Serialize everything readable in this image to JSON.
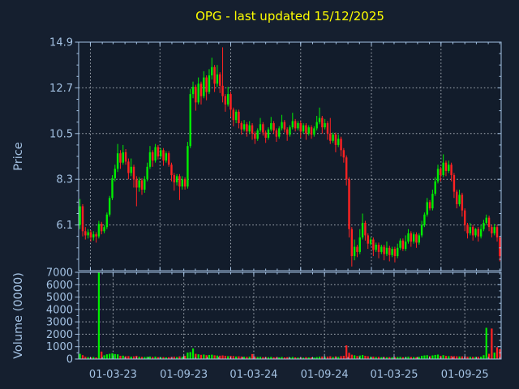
{
  "title": {
    "text": "OPG - last updated 15/12/2025"
  },
  "colors": {
    "figure_background": "#151f2f",
    "plot_background": "#121c2b",
    "axis": "#a4c2e3",
    "tick_label": "#a4c2e3",
    "grid": "#c6cdd5",
    "up": "#00ee00",
    "down": "#ff2222",
    "title": "#ffff00"
  },
  "price_axis": {
    "label": "Price",
    "tick_labels": [
      "14.9",
      "12.7",
      "10.5",
      "8.3",
      "6.1"
    ],
    "tick_values": [
      14.9,
      12.7,
      10.5,
      8.3,
      6.1
    ],
    "ylim": [
      3.9,
      14.9
    ],
    "gridline_values": [
      12.7,
      10.5,
      8.3,
      6.1
    ],
    "major_weeks": [
      3.857,
      29.714,
      56.0,
      82.0,
      108.286,
      134.143
    ]
  },
  "volume_axis": {
    "label": "Volume (0000)",
    "tick_labels": [
      "7000",
      "6000",
      "5000",
      "4000",
      "3000",
      "2000",
      "1000",
      "0"
    ],
    "tick_values": [
      7000,
      6000,
      5000,
      4000,
      3000,
      2000,
      1000,
      0
    ],
    "ylim": [
      0,
      7000
    ],
    "gridline_values": [
      6000,
      5000,
      4000,
      3000,
      2000,
      1000
    ],
    "major_weeks": [
      12.286,
      38.571,
      64.571,
      90.857,
      116.714,
      143.0
    ]
  },
  "x_axis": {
    "labels": [
      "01-03-23",
      "01-09-23",
      "01-03-24",
      "01-09-24",
      "01-03-25",
      "01-09-25"
    ],
    "label_weeks": [
      12.286,
      38.571,
      64.571,
      90.857,
      116.714,
      143.0
    ],
    "minor_weeks": [
      3.857,
      8.286,
      12.286,
      16.714,
      21.0,
      25.429,
      29.714,
      34.143,
      38.571,
      42.857,
      47.286,
      51.571,
      56.0,
      60.429,
      64.571,
      69.0,
      73.286,
      77.714,
      82.0,
      86.429,
      90.857,
      95.143,
      99.571,
      103.857,
      108.286,
      112.714,
      116.714,
      121.143,
      125.429,
      129.857,
      134.143,
      138.571,
      143.0,
      147.286,
      151.714,
      156.0
    ]
  },
  "chart_data": {
    "type": "candlestick",
    "subplots": [
      "price",
      "volume"
    ],
    "freq": "weekly",
    "start_date": "2022-12-05",
    "title": "OPG - last updated 15/12/2025",
    "columns": [
      "open",
      "high",
      "low",
      "close",
      "volume_0000"
    ],
    "candles": [
      [
        6.1,
        7.35,
        5.9,
        7.0,
        420
      ],
      [
        7.0,
        7.1,
        5.55,
        5.8,
        310
      ],
      [
        5.8,
        6.0,
        5.4,
        5.6,
        180
      ],
      [
        5.6,
        5.9,
        5.45,
        5.75,
        150
      ],
      [
        5.75,
        5.85,
        5.3,
        5.5,
        140
      ],
      [
        5.5,
        5.8,
        5.35,
        5.65,
        160
      ],
      [
        5.65,
        5.75,
        5.25,
        5.55,
        130
      ],
      [
        5.55,
        6.3,
        5.45,
        6.15,
        7200
      ],
      [
        6.15,
        6.25,
        5.65,
        5.8,
        600
      ],
      [
        5.8,
        6.1,
        5.7,
        6.0,
        300
      ],
      [
        6.0,
        6.7,
        5.9,
        6.6,
        380
      ],
      [
        6.6,
        7.5,
        6.5,
        7.4,
        420
      ],
      [
        7.4,
        8.5,
        7.3,
        8.35,
        460
      ],
      [
        8.35,
        9.0,
        8.2,
        8.8,
        400
      ],
      [
        8.8,
        10.0,
        8.65,
        9.55,
        380
      ],
      [
        9.55,
        9.7,
        8.8,
        9.1,
        260
      ],
      [
        9.1,
        9.95,
        9.0,
        9.6,
        270
      ],
      [
        9.6,
        9.75,
        9.0,
        9.15,
        220
      ],
      [
        9.15,
        9.3,
        8.3,
        8.6,
        230
      ],
      [
        8.6,
        9.3,
        8.45,
        8.9,
        190
      ],
      [
        8.9,
        9.0,
        7.9,
        8.3,
        210
      ],
      [
        8.3,
        8.45,
        7.0,
        7.9,
        260
      ],
      [
        7.9,
        8.4,
        7.7,
        8.25,
        180
      ],
      [
        8.25,
        8.35,
        7.55,
        7.8,
        170
      ],
      [
        7.8,
        8.45,
        7.65,
        8.3,
        160
      ],
      [
        8.3,
        9.1,
        8.2,
        8.9,
        175
      ],
      [
        8.9,
        9.9,
        8.8,
        9.6,
        200
      ],
      [
        9.6,
        9.7,
        8.9,
        9.2,
        165
      ],
      [
        9.2,
        10.0,
        9.1,
        9.85,
        195
      ],
      [
        9.85,
        9.95,
        9.25,
        9.4,
        150
      ],
      [
        9.4,
        9.8,
        9.3,
        9.7,
        145
      ],
      [
        9.7,
        9.8,
        8.95,
        9.2,
        155
      ],
      [
        9.2,
        9.65,
        9.1,
        9.55,
        135
      ],
      [
        9.55,
        9.65,
        8.9,
        9.0,
        145
      ],
      [
        9.0,
        9.1,
        8.2,
        8.5,
        165
      ],
      [
        8.5,
        8.6,
        7.75,
        8.15,
        185
      ],
      [
        8.15,
        8.55,
        8.0,
        8.45,
        155
      ],
      [
        8.45,
        8.55,
        7.3,
        7.95,
        210
      ],
      [
        7.95,
        8.45,
        7.8,
        8.3,
        175
      ],
      [
        8.3,
        8.4,
        7.8,
        7.95,
        255
      ],
      [
        7.95,
        10.1,
        7.85,
        9.9,
        520
      ],
      [
        9.9,
        12.65,
        9.8,
        12.4,
        560
      ],
      [
        12.4,
        13.0,
        12.2,
        12.75,
        850
      ],
      [
        12.75,
        12.85,
        11.6,
        12.0,
        420
      ],
      [
        12.0,
        13.2,
        11.9,
        12.9,
        380
      ],
      [
        12.9,
        13.0,
        11.9,
        12.3,
        340
      ],
      [
        12.3,
        13.5,
        12.2,
        13.2,
        360
      ],
      [
        13.2,
        13.3,
        12.1,
        12.5,
        310
      ],
      [
        12.5,
        13.6,
        12.4,
        13.3,
        330
      ],
      [
        13.3,
        14.15,
        13.1,
        13.7,
        350
      ],
      [
        13.7,
        13.8,
        12.5,
        12.9,
        300
      ],
      [
        12.9,
        13.8,
        12.75,
        13.35,
        280
      ],
      [
        13.35,
        13.45,
        12.45,
        12.8,
        270
      ],
      [
        12.8,
        14.65,
        12.0,
        12.3,
        290
      ],
      [
        12.3,
        12.4,
        11.55,
        11.9,
        260
      ],
      [
        11.9,
        12.75,
        11.8,
        12.4,
        230
      ],
      [
        12.4,
        12.5,
        11.3,
        11.65,
        250
      ],
      [
        11.65,
        11.75,
        10.85,
        11.15,
        235
      ],
      [
        11.15,
        11.65,
        11.0,
        11.55,
        200
      ],
      [
        11.55,
        11.65,
        10.75,
        11.0,
        215
      ],
      [
        11.0,
        11.1,
        10.45,
        10.7,
        195
      ],
      [
        10.7,
        11.15,
        10.6,
        10.95,
        180
      ],
      [
        10.95,
        11.05,
        10.35,
        10.6,
        170
      ],
      [
        10.6,
        11.1,
        10.5,
        10.9,
        185
      ],
      [
        10.9,
        11.0,
        10.2,
        10.5,
        400
      ],
      [
        10.5,
        10.6,
        10.0,
        10.25,
        190
      ],
      [
        10.25,
        10.75,
        10.15,
        10.65,
        160
      ],
      [
        10.65,
        11.25,
        10.55,
        10.95,
        175
      ],
      [
        10.95,
        11.05,
        10.4,
        10.55,
        150
      ],
      [
        10.55,
        10.65,
        10.05,
        10.3,
        160
      ],
      [
        10.3,
        10.8,
        10.2,
        10.7,
        145
      ],
      [
        10.7,
        11.3,
        10.6,
        11.0,
        170
      ],
      [
        11.0,
        11.1,
        10.5,
        10.65,
        140
      ],
      [
        10.65,
        10.75,
        10.1,
        10.35,
        150
      ],
      [
        10.35,
        10.85,
        10.25,
        10.75,
        135
      ],
      [
        10.75,
        11.4,
        10.65,
        11.05,
        165
      ],
      [
        11.05,
        11.15,
        10.55,
        10.7,
        130
      ],
      [
        10.7,
        10.8,
        10.15,
        10.45,
        145
      ],
      [
        10.45,
        10.9,
        10.35,
        10.8,
        125
      ],
      [
        10.8,
        11.5,
        10.7,
        11.1,
        160
      ],
      [
        11.1,
        11.2,
        10.6,
        10.75,
        135
      ],
      [
        10.75,
        11.1,
        10.65,
        11.0,
        120
      ],
      [
        11.0,
        11.1,
        10.3,
        10.6,
        140
      ],
      [
        10.6,
        11.0,
        10.5,
        10.9,
        115
      ],
      [
        10.9,
        11.0,
        10.2,
        10.5,
        150
      ],
      [
        10.5,
        10.9,
        10.4,
        10.8,
        125
      ],
      [
        10.8,
        10.9,
        10.25,
        10.45,
        135
      ],
      [
        10.45,
        10.85,
        10.35,
        10.75,
        120
      ],
      [
        10.75,
        11.35,
        10.65,
        11.05,
        155
      ],
      [
        11.05,
        11.75,
        10.95,
        11.25,
        185
      ],
      [
        11.25,
        11.35,
        10.5,
        10.8,
        200
      ],
      [
        10.8,
        11.2,
        10.7,
        11.0,
        170
      ],
      [
        11.0,
        11.1,
        10.2,
        10.5,
        190
      ],
      [
        10.5,
        11.25,
        10.0,
        10.15,
        220
      ],
      [
        10.15,
        10.55,
        10.05,
        10.45,
        160
      ],
      [
        10.45,
        10.55,
        9.6,
        9.95,
        210
      ],
      [
        9.95,
        10.45,
        9.85,
        10.25,
        170
      ],
      [
        10.25,
        10.35,
        9.4,
        9.7,
        230
      ],
      [
        9.7,
        9.8,
        9.1,
        9.35,
        260
      ],
      [
        9.35,
        9.45,
        8.0,
        8.3,
        1100
      ],
      [
        8.3,
        8.4,
        5.5,
        5.9,
        500
      ],
      [
        5.9,
        6.0,
        4.1,
        4.6,
        350
      ],
      [
        4.6,
        5.4,
        4.4,
        5.05,
        300
      ],
      [
        5.05,
        5.15,
        4.55,
        4.8,
        240
      ],
      [
        4.8,
        5.9,
        4.7,
        5.5,
        280
      ],
      [
        5.5,
        6.65,
        5.4,
        6.2,
        320
      ],
      [
        6.2,
        6.3,
        5.35,
        5.6,
        260
      ],
      [
        5.6,
        5.7,
        4.95,
        5.2,
        220
      ],
      [
        5.2,
        5.5,
        5.1,
        5.4,
        180
      ],
      [
        5.4,
        5.5,
        4.6,
        4.9,
        190
      ],
      [
        4.9,
        5.25,
        4.8,
        5.15,
        160
      ],
      [
        5.15,
        5.25,
        4.5,
        4.8,
        170
      ],
      [
        4.8,
        5.15,
        4.7,
        5.05,
        150
      ],
      [
        5.05,
        5.15,
        4.4,
        4.7,
        160
      ],
      [
        4.7,
        5.3,
        4.6,
        5.0,
        145
      ],
      [
        5.0,
        5.1,
        4.35,
        4.65,
        155
      ],
      [
        4.65,
        5.05,
        4.55,
        4.95,
        140
      ],
      [
        4.95,
        5.05,
        4.3,
        4.6,
        150
      ],
      [
        4.6,
        5.2,
        4.5,
        5.0,
        160
      ],
      [
        5.0,
        5.45,
        4.9,
        5.35,
        170
      ],
      [
        5.35,
        5.45,
        4.85,
        4.95,
        145
      ],
      [
        4.95,
        5.6,
        4.85,
        5.3,
        160
      ],
      [
        5.3,
        5.9,
        5.2,
        5.7,
        185
      ],
      [
        5.7,
        5.8,
        5.05,
        5.3,
        165
      ],
      [
        5.3,
        5.75,
        5.2,
        5.65,
        155
      ],
      [
        5.65,
        5.75,
        5.0,
        5.25,
        150
      ],
      [
        5.25,
        5.7,
        5.15,
        5.6,
        170
      ],
      [
        5.6,
        6.3,
        5.5,
        6.1,
        260
      ],
      [
        6.1,
        6.7,
        6.0,
        6.6,
        290
      ],
      [
        6.6,
        7.4,
        6.5,
        7.2,
        310
      ],
      [
        7.2,
        7.3,
        6.8,
        6.9,
        230
      ],
      [
        6.9,
        7.8,
        6.8,
        7.6,
        290
      ],
      [
        7.6,
        8.4,
        7.5,
        8.2,
        330
      ],
      [
        8.2,
        9.0,
        8.1,
        8.8,
        360
      ],
      [
        8.8,
        8.9,
        8.2,
        8.5,
        260
      ],
      [
        8.5,
        9.5,
        8.4,
        9.1,
        310
      ],
      [
        9.1,
        9.2,
        8.45,
        8.7,
        250
      ],
      [
        8.7,
        9.2,
        8.6,
        9.0,
        230
      ],
      [
        9.0,
        9.1,
        8.2,
        8.5,
        240
      ],
      [
        8.5,
        8.6,
        7.4,
        7.7,
        225
      ],
      [
        7.7,
        7.8,
        6.9,
        7.1,
        215
      ],
      [
        7.1,
        7.8,
        7.0,
        7.55,
        205
      ],
      [
        7.55,
        7.65,
        6.5,
        6.8,
        210
      ],
      [
        6.8,
        6.9,
        5.8,
        6.1,
        195
      ],
      [
        6.1,
        6.2,
        5.45,
        5.7,
        185
      ],
      [
        5.7,
        6.2,
        5.6,
        6.0,
        175
      ],
      [
        6.0,
        6.1,
        5.35,
        5.6,
        170
      ],
      [
        5.6,
        5.95,
        5.5,
        5.9,
        165
      ],
      [
        5.9,
        6.0,
        5.3,
        5.55,
        175
      ],
      [
        5.55,
        6.1,
        5.45,
        5.9,
        185
      ],
      [
        5.9,
        6.35,
        5.8,
        6.2,
        310
      ],
      [
        6.2,
        6.6,
        6.1,
        6.45,
        2520
      ],
      [
        6.45,
        6.55,
        5.8,
        6.0,
        420
      ],
      [
        6.0,
        6.1,
        5.5,
        5.7,
        2460
      ],
      [
        5.7,
        6.15,
        5.6,
        6.0,
        520
      ],
      [
        6.0,
        6.1,
        5.3,
        5.5,
        950
      ],
      [
        5.5,
        5.55,
        4.35,
        4.6,
        800
      ]
    ]
  }
}
